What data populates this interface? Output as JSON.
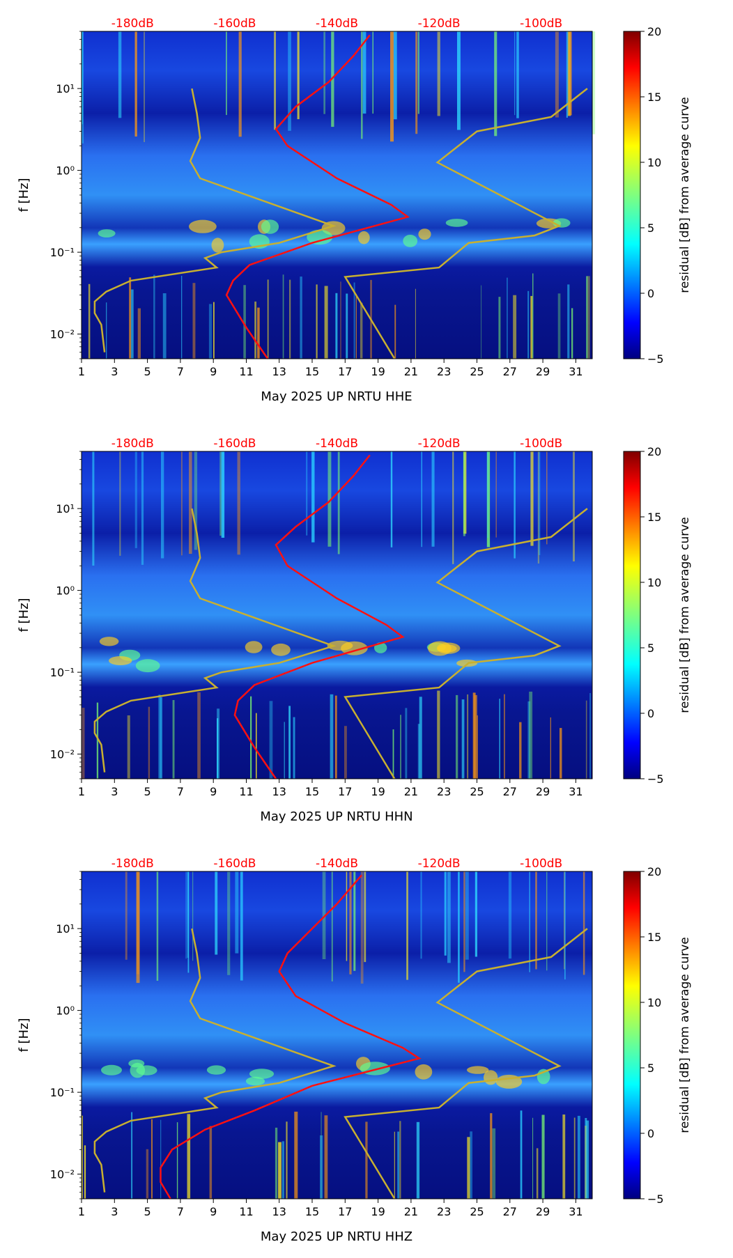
{
  "colors": {
    "psd_curve": "#ff1010",
    "noise_model": "#c8b030",
    "db_scale_text": "#ff0000"
  },
  "colormap": "jet",
  "chart_data": [
    {
      "type": "heatmap",
      "xlabel": "May 2025 UP NRTU  HHE",
      "ylabel": "f [Hz]",
      "yscale": "log",
      "x_ticks": [
        "1",
        "3",
        "5",
        "7",
        "9",
        "11",
        "13",
        "15",
        "17",
        "19",
        "21",
        "23",
        "25",
        "27",
        "29",
        "31"
      ],
      "y_ticks": [
        "10⁻²",
        "10⁻¹",
        "10⁰",
        "10¹"
      ],
      "top_db_labels": [
        "-180dB",
        "-160dB",
        "-140dB",
        "-120dB",
        "-100dB"
      ],
      "colorbar": {
        "label": "residual [dB] from average curve",
        "range": [
          -5,
          20
        ],
        "ticks": [
          "−5",
          "0",
          "5",
          "10",
          "15",
          "20"
        ]
      },
      "xlim": [
        1,
        32
      ],
      "ylim": [
        0.005,
        50
      ]
    },
    {
      "type": "heatmap",
      "xlabel": "May 2025 UP NRTU  HHN",
      "ylabel": "f [Hz]",
      "yscale": "log",
      "x_ticks": [
        "1",
        "3",
        "5",
        "7",
        "9",
        "11",
        "13",
        "15",
        "17",
        "19",
        "21",
        "23",
        "25",
        "27",
        "29",
        "31"
      ],
      "y_ticks": [
        "10⁻²",
        "10⁻¹",
        "10⁰",
        "10¹"
      ],
      "top_db_labels": [
        "-180dB",
        "-160dB",
        "-140dB",
        "-120dB",
        "-100dB"
      ],
      "colorbar": {
        "label": "residual [dB] from average curve",
        "range": [
          -5,
          20
        ],
        "ticks": [
          "−5",
          "0",
          "5",
          "10",
          "15",
          "20"
        ]
      },
      "xlim": [
        1,
        32
      ],
      "ylim": [
        0.005,
        50
      ]
    },
    {
      "type": "heatmap",
      "xlabel": "May 2025 UP NRTU  HHZ",
      "ylabel": "f [Hz]",
      "yscale": "log",
      "x_ticks": [
        "1",
        "3",
        "5",
        "7",
        "9",
        "11",
        "13",
        "15",
        "17",
        "19",
        "21",
        "23",
        "25",
        "27",
        "29",
        "31"
      ],
      "y_ticks": [
        "10⁻²",
        "10⁻¹",
        "10⁰",
        "10¹"
      ],
      "top_db_labels": [
        "-180dB",
        "-160dB",
        "-140dB",
        "-120dB",
        "-100dB"
      ],
      "colorbar": {
        "label": "residual [dB] from average curve",
        "range": [
          -5,
          20
        ],
        "ticks": [
          "−5",
          "0",
          "5",
          "10",
          "15",
          "20"
        ]
      },
      "xlim": [
        1,
        32
      ],
      "ylim": [
        0.005,
        50
      ]
    }
  ]
}
